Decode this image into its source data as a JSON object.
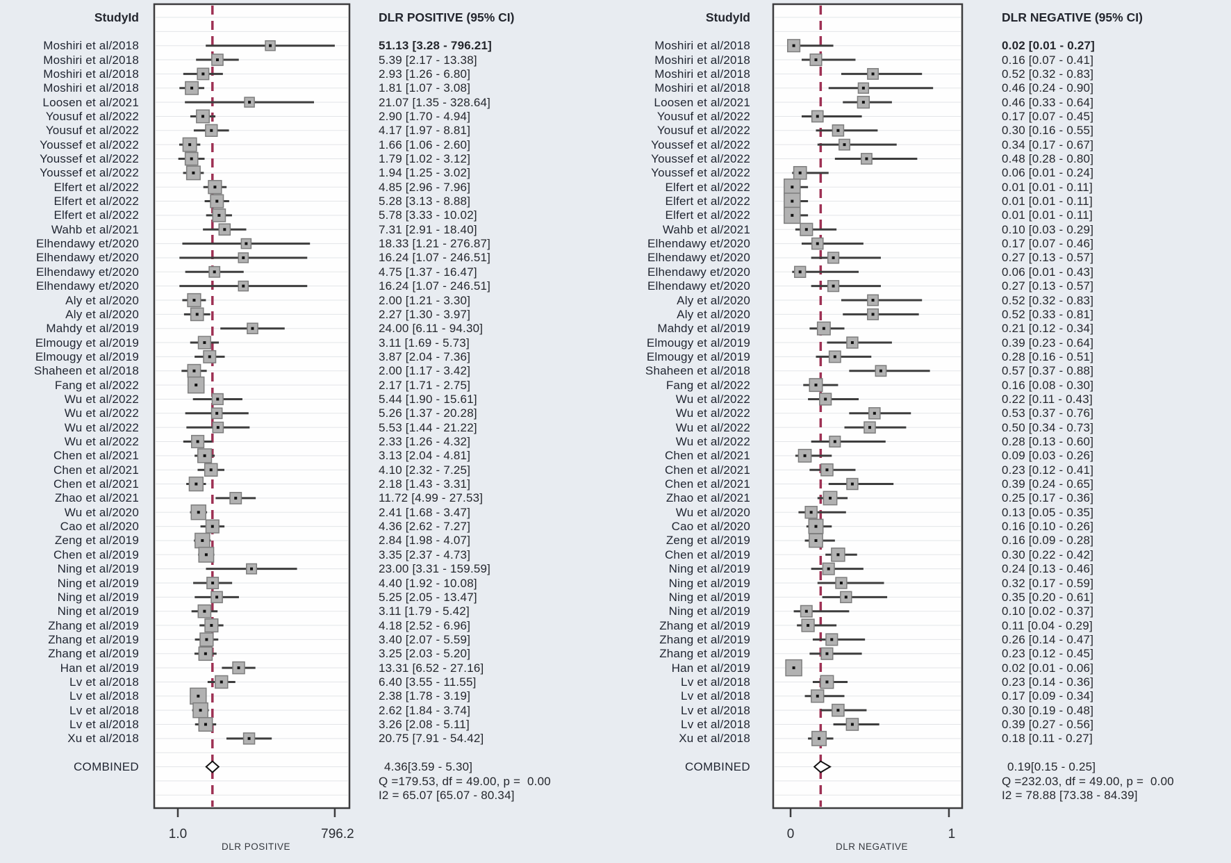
{
  "figure": {
    "background": "#e8ecf1",
    "plot_background": "#fefefe",
    "frame_color": "#3c3c3e",
    "grid_color": "#e3e5e8",
    "ci_line_color": "#3d3d3d",
    "marker_fill": "#b2b2b2",
    "marker_stroke": "#7d7d7d",
    "marker_dot_color": "#111111",
    "dashed_line_color": "#9e3154",
    "diamond_fill": "#ffffff",
    "diamond_stroke": "#111111",
    "text_color": "#23262e"
  },
  "panels": {
    "left": {
      "studyid_header": "StudyId",
      "values_header": "DLR POSITIVE (95% CI)",
      "combined_label": "COMBINED",
      "combined_value_text": "4.36[3.59 - 5.30]",
      "q_text": "Q =179.53, df = 49.00, p =  0.00",
      "i2_text": "I2 = 65.07 [65.07 - 80.34]",
      "axis_title": "DLR POSITIVE",
      "tick_labels": [
        "1.0",
        "796.2"
      ]
    },
    "right": {
      "studyid_header": "StudyId",
      "values_header": "DLR NEGATIVE (95% CI)",
      "combined_label": "COMBINED",
      "combined_value_text": "0.19[0.15 - 0.25]",
      "q_text": "Q =232.03, df = 49.00, p =  0.00",
      "i2_text": "I2 = 78.88 [73.38 - 84.39]",
      "axis_title": "DLR NEGATIVE",
      "tick_labels": [
        "0",
        "1"
      ]
    }
  },
  "chart_data": {
    "type": "forest",
    "studies": [
      "Moshiri et al/2018",
      "Moshiri et al/2018",
      "Moshiri et al/2018",
      "Moshiri et al/2018",
      "Loosen et al/2021",
      "Yousuf et al/2022",
      "Yousuf et al/2022",
      "Youssef et al/2022",
      "Youssef et al/2022",
      "Youssef et al/2022",
      "Elfert et al/2022",
      "Elfert et al/2022",
      "Elfert et al/2022",
      "Wahb et al/2021",
      "Elhendawy et/2020",
      "Elhendawy et/2020",
      "Elhendawy et/2020",
      "Elhendawy et/2020",
      "Aly et al/2020",
      "Aly et al/2020",
      "Mahdy et al/2019",
      "Elmougy et al/2019",
      "Elmougy et al/2019",
      "Shaheen et al/2018",
      "Fang et al/2022",
      "Wu et al/2022",
      "Wu et al/2022",
      "Wu et al/2022",
      "Wu et al/2022",
      "Chen et al/2021",
      "Chen et al/2021",
      "Chen et al/2021",
      "Zhao et al/2021",
      "Wu et al/2020",
      "Cao et al/2020",
      "Zeng et al/2019",
      "Chen et al/2019",
      "Ning et al/2019",
      "Ning et al/2019",
      "Ning et al/2019",
      "Ning et al/2019",
      "Zhang et al/2019",
      "Zhang et al/2019",
      "Zhang et al/2019",
      "Han et al/2019",
      "Lv et al/2018",
      "Lv et al/2018",
      "Lv et al/2018",
      "Lv et al/2018",
      "Xu et al/2018"
    ],
    "panels": [
      {
        "name": "DLR POSITIVE",
        "xlabel": "DLR POSITIVE",
        "scale": "log",
        "xlim": [
          1.0,
          796.2
        ],
        "axis_ticks": [
          1.0,
          796.2
        ],
        "estimates": [
          [
            51.13,
            3.28,
            796.21
          ],
          [
            5.39,
            2.17,
            13.38
          ],
          [
            2.93,
            1.26,
            6.8
          ],
          [
            1.81,
            1.07,
            3.08
          ],
          [
            21.07,
            1.35,
            328.64
          ],
          [
            2.9,
            1.7,
            4.94
          ],
          [
            4.17,
            1.97,
            8.81
          ],
          [
            1.66,
            1.06,
            2.6
          ],
          [
            1.79,
            1.02,
            3.12
          ],
          [
            1.94,
            1.25,
            3.02
          ],
          [
            4.85,
            2.96,
            7.96
          ],
          [
            5.28,
            3.13,
            8.88
          ],
          [
            5.78,
            3.33,
            10.02
          ],
          [
            7.31,
            2.91,
            18.4
          ],
          [
            18.33,
            1.21,
            276.87
          ],
          [
            16.24,
            1.07,
            246.51
          ],
          [
            4.75,
            1.37,
            16.47
          ],
          [
            16.24,
            1.07,
            246.51
          ],
          [
            2.0,
            1.21,
            3.3
          ],
          [
            2.27,
            1.3,
            3.97
          ],
          [
            24.0,
            6.11,
            94.3
          ],
          [
            3.11,
            1.69,
            5.73
          ],
          [
            3.87,
            2.04,
            7.36
          ],
          [
            2.0,
            1.17,
            3.42
          ],
          [
            2.17,
            1.71,
            2.75
          ],
          [
            5.44,
            1.9,
            15.61
          ],
          [
            5.26,
            1.37,
            20.28
          ],
          [
            5.53,
            1.44,
            21.22
          ],
          [
            2.33,
            1.26,
            4.32
          ],
          [
            3.13,
            2.04,
            4.81
          ],
          [
            4.1,
            2.32,
            7.25
          ],
          [
            2.18,
            1.43,
            3.31
          ],
          [
            11.72,
            4.99,
            27.53
          ],
          [
            2.41,
            1.68,
            3.47
          ],
          [
            4.36,
            2.62,
            7.27
          ],
          [
            2.84,
            1.98,
            4.07
          ],
          [
            3.35,
            2.37,
            4.73
          ],
          [
            23.0,
            3.31,
            159.59
          ],
          [
            4.4,
            1.92,
            10.08
          ],
          [
            5.25,
            2.05,
            13.47
          ],
          [
            3.11,
            1.79,
            5.42
          ],
          [
            4.18,
            2.52,
            6.96
          ],
          [
            3.4,
            2.07,
            5.59
          ],
          [
            3.25,
            2.03,
            5.2
          ],
          [
            13.31,
            6.52,
            27.16
          ],
          [
            6.4,
            3.55,
            11.55
          ],
          [
            2.38,
            1.78,
            3.19
          ],
          [
            2.62,
            1.84,
            3.74
          ],
          [
            3.26,
            2.08,
            5.11
          ],
          [
            20.75,
            7.91,
            54.42
          ]
        ],
        "combined": {
          "label": "COMBINED",
          "estimate": 4.36,
          "ci": [
            3.59,
            5.3
          ]
        },
        "heterogeneity": {
          "Q": 179.53,
          "df": 49,
          "p": 0.0,
          "I2": 65.07,
          "I2_ci": [
            65.07,
            80.34
          ]
        }
      },
      {
        "name": "DLR NEGATIVE",
        "xlabel": "DLR NEGATIVE",
        "scale": "linear",
        "xlim": [
          0,
          1
        ],
        "axis_ticks": [
          0,
          1
        ],
        "estimates": [
          [
            0.02,
            0.01,
            0.27
          ],
          [
            0.16,
            0.07,
            0.41
          ],
          [
            0.52,
            0.32,
            0.83
          ],
          [
            0.46,
            0.24,
            0.9
          ],
          [
            0.46,
            0.33,
            0.64
          ],
          [
            0.17,
            0.07,
            0.45
          ],
          [
            0.3,
            0.16,
            0.55
          ],
          [
            0.34,
            0.17,
            0.67
          ],
          [
            0.48,
            0.28,
            0.8
          ],
          [
            0.06,
            0.01,
            0.24
          ],
          [
            0.01,
            0.01,
            0.11
          ],
          [
            0.01,
            0.01,
            0.11
          ],
          [
            0.01,
            0.01,
            0.11
          ],
          [
            0.1,
            0.03,
            0.29
          ],
          [
            0.17,
            0.07,
            0.46
          ],
          [
            0.27,
            0.13,
            0.57
          ],
          [
            0.06,
            0.01,
            0.43
          ],
          [
            0.27,
            0.13,
            0.57
          ],
          [
            0.52,
            0.32,
            0.83
          ],
          [
            0.52,
            0.33,
            0.81
          ],
          [
            0.21,
            0.12,
            0.34
          ],
          [
            0.39,
            0.23,
            0.64
          ],
          [
            0.28,
            0.16,
            0.51
          ],
          [
            0.57,
            0.37,
            0.88
          ],
          [
            0.16,
            0.08,
            0.3
          ],
          [
            0.22,
            0.11,
            0.43
          ],
          [
            0.53,
            0.37,
            0.76
          ],
          [
            0.5,
            0.34,
            0.73
          ],
          [
            0.28,
            0.13,
            0.6
          ],
          [
            0.09,
            0.03,
            0.26
          ],
          [
            0.23,
            0.12,
            0.41
          ],
          [
            0.39,
            0.24,
            0.65
          ],
          [
            0.25,
            0.17,
            0.36
          ],
          [
            0.13,
            0.05,
            0.35
          ],
          [
            0.16,
            0.1,
            0.26
          ],
          [
            0.16,
            0.09,
            0.28
          ],
          [
            0.3,
            0.22,
            0.42
          ],
          [
            0.24,
            0.13,
            0.46
          ],
          [
            0.32,
            0.17,
            0.59
          ],
          [
            0.35,
            0.2,
            0.61
          ],
          [
            0.1,
            0.02,
            0.37
          ],
          [
            0.11,
            0.04,
            0.29
          ],
          [
            0.26,
            0.14,
            0.47
          ],
          [
            0.23,
            0.12,
            0.45
          ],
          [
            0.02,
            0.01,
            0.06
          ],
          [
            0.23,
            0.14,
            0.36
          ],
          [
            0.17,
            0.09,
            0.34
          ],
          [
            0.3,
            0.19,
            0.48
          ],
          [
            0.39,
            0.27,
            0.56
          ],
          [
            0.18,
            0.11,
            0.27
          ]
        ],
        "combined": {
          "label": "COMBINED",
          "estimate": 0.19,
          "ci": [
            0.15,
            0.25
          ]
        },
        "heterogeneity": {
          "Q": 232.03,
          "df": 49,
          "p": 0.0,
          "I2": 78.88,
          "I2_ci": [
            73.38,
            84.39
          ]
        }
      }
    ]
  }
}
